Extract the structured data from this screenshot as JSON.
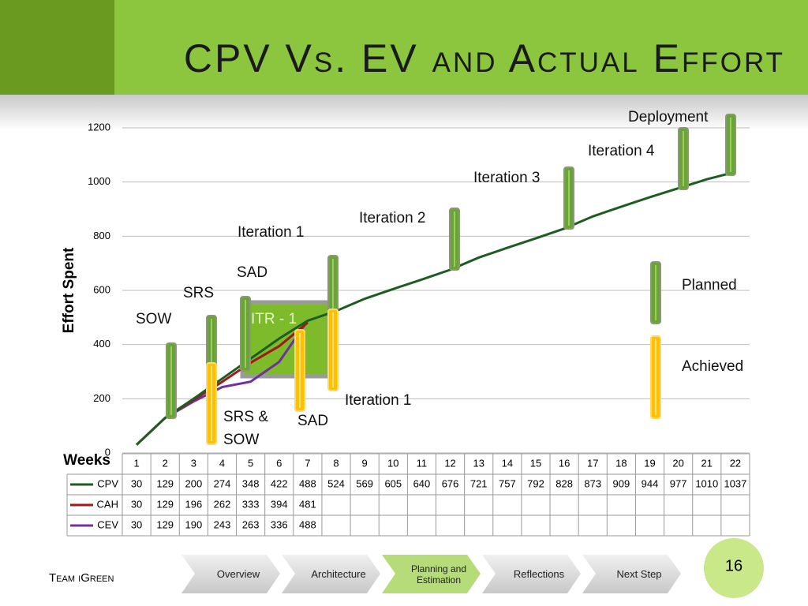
{
  "chart_data": {
    "type": "line",
    "title": "CPV Vs. EV and Actual Effort",
    "y_label": "Effort Spent",
    "x_label": "Weeks",
    "categories": [
      "1",
      "2",
      "3",
      "4",
      "5",
      "6",
      "7",
      "8",
      "9",
      "10",
      "11",
      "12",
      "13",
      "14",
      "15",
      "16",
      "17",
      "18",
      "19",
      "20",
      "21",
      "22"
    ],
    "series": [
      {
        "name": "CPV",
        "color": "#1e5c24",
        "values": [
          30,
          129,
          200,
          274,
          348,
          422,
          488,
          524,
          569,
          605,
          640,
          676,
          721,
          757,
          792,
          828,
          873,
          909,
          944,
          977,
          1010,
          1037
        ]
      },
      {
        "name": "CAH",
        "color": "#a01818",
        "values": [
          30,
          129,
          196,
          262,
          333,
          394,
          481,
          null,
          null,
          null,
          null,
          null,
          null,
          null,
          null,
          null,
          null,
          null,
          null,
          null,
          null,
          null
        ]
      },
      {
        "name": "CEV",
        "color": "#7030a0",
        "values": [
          30,
          129,
          190,
          243,
          263,
          336,
          488,
          null,
          null,
          null,
          null,
          null,
          null,
          null,
          null,
          null,
          null,
          null,
          null,
          null,
          null,
          null
        ]
      }
    ],
    "ylim": [
      0,
      1200
    ],
    "yticks": [
      0,
      200,
      400,
      600,
      800,
      1000,
      1200
    ],
    "grid": true,
    "annotations": [
      "SOW",
      "SRS",
      "SAD",
      "Iteration 1",
      "Iteration 2",
      "Iteration 3",
      "Iteration 4",
      "Deployment",
      "ITR - 1",
      "Planned",
      "Achieved",
      "SRS & SOW",
      "SAD",
      "Iteration 1"
    ]
  },
  "footer": {
    "team": "Team iGreen",
    "page": "16"
  },
  "nav": [
    "Overview",
    "Architecture",
    "Planning and Estimation",
    "Reflections",
    "Next Step"
  ]
}
